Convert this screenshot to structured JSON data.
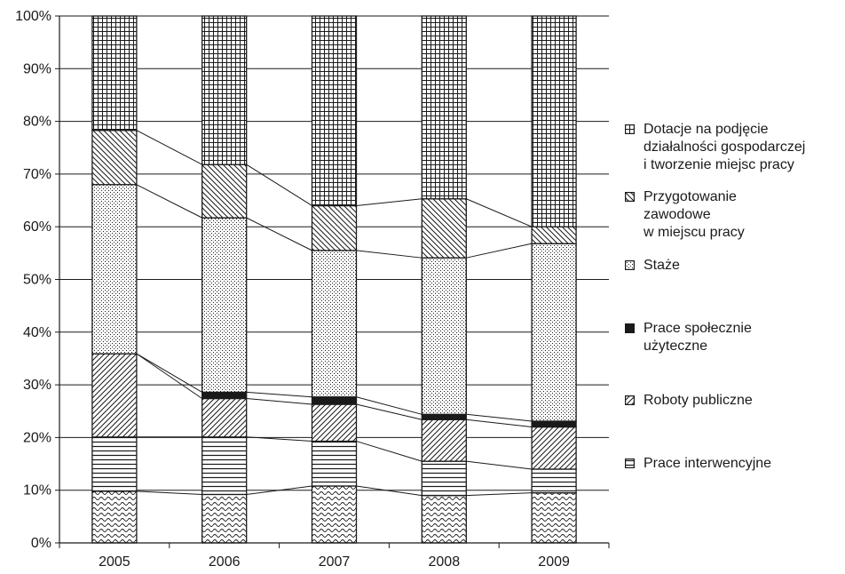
{
  "chart_data": {
    "type": "bar",
    "stacked": true,
    "categories": [
      "2005",
      "2006",
      "2007",
      "2008",
      "2009"
    ],
    "ylim": [
      0,
      100
    ],
    "yticks": [
      "0%",
      "10%",
      "20%",
      "30%",
      "40%",
      "50%",
      "60%",
      "70%",
      "80%",
      "90%",
      "100%"
    ],
    "grid": true,
    "legend_position": "right",
    "series_lines": true,
    "series": [
      {
        "name": "",
        "pattern": "waves",
        "values": [
          9.8,
          9.2,
          10.8,
          9.0,
          9.5
        ]
      },
      {
        "name": "Prace interwencyjne",
        "pattern": "hlines",
        "values": [
          10.3,
          10.9,
          8.5,
          6.5,
          4.5
        ]
      },
      {
        "name": "Roboty publiczne",
        "pattern": "diag-up",
        "values": [
          15.8,
          7.3,
          7.0,
          7.9,
          8.0
        ]
      },
      {
        "name": "Prace społecznie\nużyteczne",
        "pattern": "solid",
        "values": [
          0.0,
          1.2,
          1.4,
          1.0,
          1.1
        ]
      },
      {
        "name": "Staże",
        "pattern": "dots",
        "values": [
          32.1,
          33.1,
          27.8,
          29.7,
          33.7
        ]
      },
      {
        "name": "Przygotowanie\nzawodowe\nw miejscu pracy",
        "pattern": "diag-down",
        "values": [
          10.3,
          10.1,
          8.5,
          11.2,
          3.2
        ]
      },
      {
        "name": "Dotacje na podjęcie\ndziałalności gospodarczej\ni tworzenie miejsc pracy",
        "pattern": "grid",
        "values": [
          21.7,
          28.2,
          36.0,
          34.7,
          40.0
        ]
      }
    ],
    "legend_order": [
      6,
      5,
      4,
      3,
      2,
      1
    ],
    "colors": {
      "ink": "#1a1a1a",
      "fill": "#ffffff"
    }
  }
}
